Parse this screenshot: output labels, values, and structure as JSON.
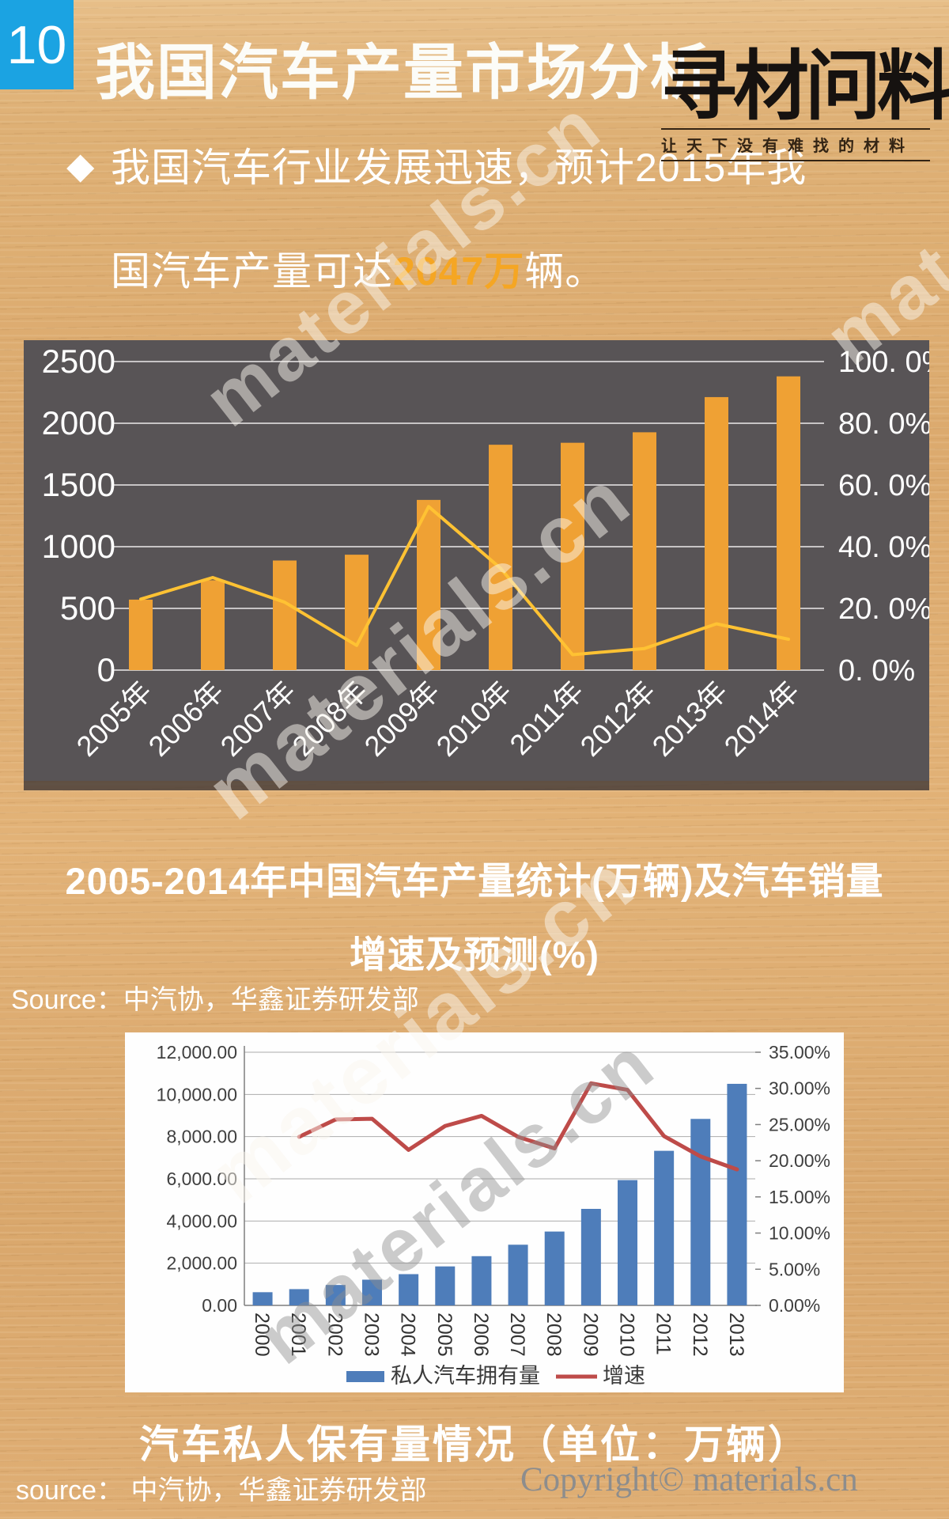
{
  "page": {
    "badge": "10",
    "title": "我国汽车产量市场分析",
    "logo": {
      "name": "寻材问料",
      "tagline": "让天下没有难找的材料"
    },
    "bullet": {
      "marker": "◆",
      "line1": "我国汽车行业发展迅速，预计2015年我",
      "line2_pre": "国汽车产量可达",
      "line2_highlight": "2047万",
      "line2_post": "辆。"
    },
    "chart1_caption_line1": "2005-2014年中国汽车产量统计(万辆)及汽车销量",
    "chart1_caption_line2": "增速及预测(%)",
    "chart1_source": "Source：中汽协，华鑫证券研发部",
    "chart2_caption": "汽车私人保有量情况（单位：万辆）",
    "chart2_source": "source： 中汽协，华鑫证券研发部",
    "copyright": "Copyright© materials.cn",
    "watermark": "materials.cn"
  },
  "colors": {
    "badge_bg": "#1BA3E2",
    "accent_orange": "#F5A623",
    "panel_dark": "#585456",
    "bar_orange": "#EFA134",
    "line_yellow": "#FFC233",
    "bar_blue": "#4E7DBA",
    "line_red": "#BE4B49",
    "grid_white": "#ECEAEA",
    "grid_gray": "#ABABAB",
    "axis_gray": "#7F7F7F",
    "text_dark": "#3F3F3F",
    "copyright_gray": "#8D8D8D"
  },
  "chart_data": [
    {
      "type": "bar+line",
      "title": "2005-2014年中国汽车产量统计(万辆)及汽车销量增速及预测(%)",
      "categories": [
        "2005年",
        "2006年",
        "2007年",
        "2008年",
        "2009年",
        "2010年",
        "2011年",
        "2012年",
        "2013年",
        "2014年"
      ],
      "series": [
        {
          "name": "汽车产量(万辆)",
          "kind": "bar",
          "axis": "left",
          "values": [
            571,
            728,
            888,
            935,
            1379,
            1826,
            1842,
            1927,
            2212,
            2380
          ]
        },
        {
          "name": "增速(%)",
          "kind": "line",
          "axis": "right",
          "values": [
            23,
            30,
            22,
            8,
            53,
            33,
            5,
            7,
            15,
            10
          ]
        }
      ],
      "left_axis": {
        "min": 0,
        "max": 2500,
        "tick_labels": [
          "0",
          "500",
          "1000",
          "1500",
          "2000",
          "2500"
        ]
      },
      "right_axis": {
        "min": 0,
        "max": 100,
        "tick_labels": [
          "0. 0%",
          "20. 0%",
          "40. 0%",
          "60. 0%",
          "80. 0%",
          "100. 0%"
        ]
      },
      "grid": true,
      "legend": "none"
    },
    {
      "type": "bar+line",
      "title": "汽车私人保有量情况（单位：万辆）",
      "categories": [
        "2000",
        "2001",
        "2002",
        "2003",
        "2004",
        "2005",
        "2006",
        "2007",
        "2008",
        "2009",
        "2010",
        "2011",
        "2012",
        "2013"
      ],
      "series": [
        {
          "name": "私人汽车拥有量",
          "kind": "bar",
          "axis": "left",
          "values": [
            625,
            771,
            969,
            1219,
            1481,
            1848,
            2333,
            2876,
            3501,
            4575,
            5939,
            7327,
            8839,
            10502
          ]
        },
        {
          "name": "增速",
          "kind": "line",
          "axis": "right",
          "values": [
            null,
            23.3,
            25.7,
            25.8,
            21.5,
            24.8,
            26.2,
            23.3,
            21.7,
            30.7,
            29.8,
            23.4,
            20.6,
            18.8
          ]
        }
      ],
      "left_axis": {
        "min": 0,
        "max": 12000,
        "tick_labels": [
          "0.00",
          "2,000.00",
          "4,000.00",
          "6,000.00",
          "8,000.00",
          "10,000.00",
          "12,000.00"
        ]
      },
      "right_axis": {
        "min": 0,
        "max": 35,
        "tick_labels": [
          "0.00%",
          "5.00%",
          "10.00%",
          "15.00%",
          "20.00%",
          "25.00%",
          "30.00%",
          "35.00%"
        ]
      },
      "grid": true,
      "legend": "bottom"
    }
  ]
}
